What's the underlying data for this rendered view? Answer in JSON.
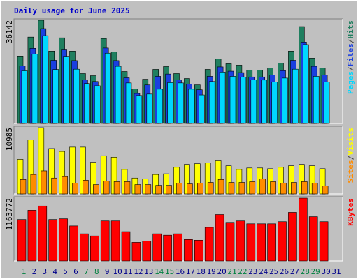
{
  "title": "Daily usage for June 2025",
  "legend_separator": "/",
  "chart_data": [
    {
      "type": "bar",
      "ylim": [
        0,
        36142
      ],
      "yticks": [
        36142
      ],
      "series": [
        {
          "name": "Hits",
          "color": "#1f7f5f",
          "values": [
            23360,
            30240,
            36142,
            25320,
            29990,
            25320,
            17460,
            16720,
            29750,
            25080,
            18190,
            12050,
            15490,
            18930,
            19910,
            17460,
            15740,
            13520,
            18930,
            22620,
            20900,
            20410,
            18690,
            18690,
            19420,
            21150,
            25320,
            33930,
            22860,
            19420,
            null
          ]
        },
        {
          "name": "Files",
          "color": "#1a3fe0",
          "values": [
            20160,
            26300,
            33200,
            22100,
            26000,
            22000,
            15300,
            14700,
            26400,
            22000,
            16000,
            10500,
            13500,
            16500,
            17300,
            15300,
            13800,
            11800,
            16500,
            19800,
            18300,
            17800,
            16300,
            16300,
            17000,
            18500,
            22100,
            28500,
            20000,
            17000,
            null
          ]
        },
        {
          "name": "Pages",
          "color": "#00d8ff",
          "values": [
            18440,
            24300,
            30730,
            18900,
            23300,
            19000,
            14000,
            13200,
            24600,
            20000,
            14200,
            9800,
            10300,
            12000,
            14300,
            14200,
            12000,
            10000,
            14700,
            18000,
            16500,
            16200,
            15300,
            15200,
            14500,
            15900,
            19000,
            27600,
            16500,
            14500,
            null
          ]
        }
      ]
    },
    {
      "type": "bar",
      "ylim": [
        0,
        10985
      ],
      "yticks": [
        10985
      ],
      "series": [
        {
          "name": "Visits",
          "color": "#ffff00",
          "values": [
            5730,
            8955,
            10985,
            7520,
            7045,
            7760,
            7760,
            5250,
            6330,
            6090,
            4060,
            2630,
            2510,
            3220,
            3340,
            4420,
            4900,
            5010,
            5130,
            5490,
            4660,
            4060,
            4300,
            4300,
            4180,
            4420,
            4660,
            4900,
            4660,
            4180,
            null
          ]
        },
        {
          "name": "Sites",
          "color": "#ff8c00",
          "values": [
            2390,
            3220,
            3820,
            2630,
            2870,
            1790,
            2270,
            1550,
            2150,
            2030,
            2030,
            1550,
            1550,
            1430,
            1430,
            1790,
            1670,
            1790,
            1910,
            2390,
            1910,
            1910,
            2030,
            2510,
            2030,
            1790,
            1910,
            2030,
            1790,
            1310,
            null
          ]
        }
      ]
    },
    {
      "type": "bar",
      "ylim": [
        0,
        1163772
      ],
      "yticks": [
        1163772
      ],
      "categories": [
        "1",
        "2",
        "3",
        "4",
        "5",
        "6",
        "7",
        "8",
        "9",
        "10",
        "11",
        "12",
        "13",
        "14",
        "15",
        "16",
        "17",
        "18",
        "19",
        "20",
        "21",
        "22",
        "23",
        "24",
        "25",
        "26",
        "27",
        "28",
        "29",
        "30",
        "31"
      ],
      "category_colors": [
        "#008040",
        "#00008b",
        "#00008b",
        "#00008b",
        "#00008b",
        "#00008b",
        "#008040",
        "#008040",
        "#00008b",
        "#00008b",
        "#00008b",
        "#00008b",
        "#00008b",
        "#008040",
        "#008040",
        "#00008b",
        "#00008b",
        "#00008b",
        "#00008b",
        "#00008b",
        "#008040",
        "#008040",
        "#00008b",
        "#00008b",
        "#00008b",
        "#00008b",
        "#00008b",
        "#008040",
        "#008040",
        "#00008b",
        "#00008b"
      ],
      "series": [
        {
          "name": "KBytes",
          "color": "#ff0000",
          "values": [
            767100,
            939000,
            1018300,
            767100,
            780300,
            648000,
            502600,
            462900,
            740600,
            740600,
            542200,
            343800,
            370300,
            502600,
            476100,
            502600,
            396700,
            383500,
            621600,
            859600,
            714100,
            740600,
            687700,
            687700,
            687700,
            727400,
            899300,
            1163772,
            819900,
            727400,
            null
          ]
        }
      ]
    }
  ]
}
